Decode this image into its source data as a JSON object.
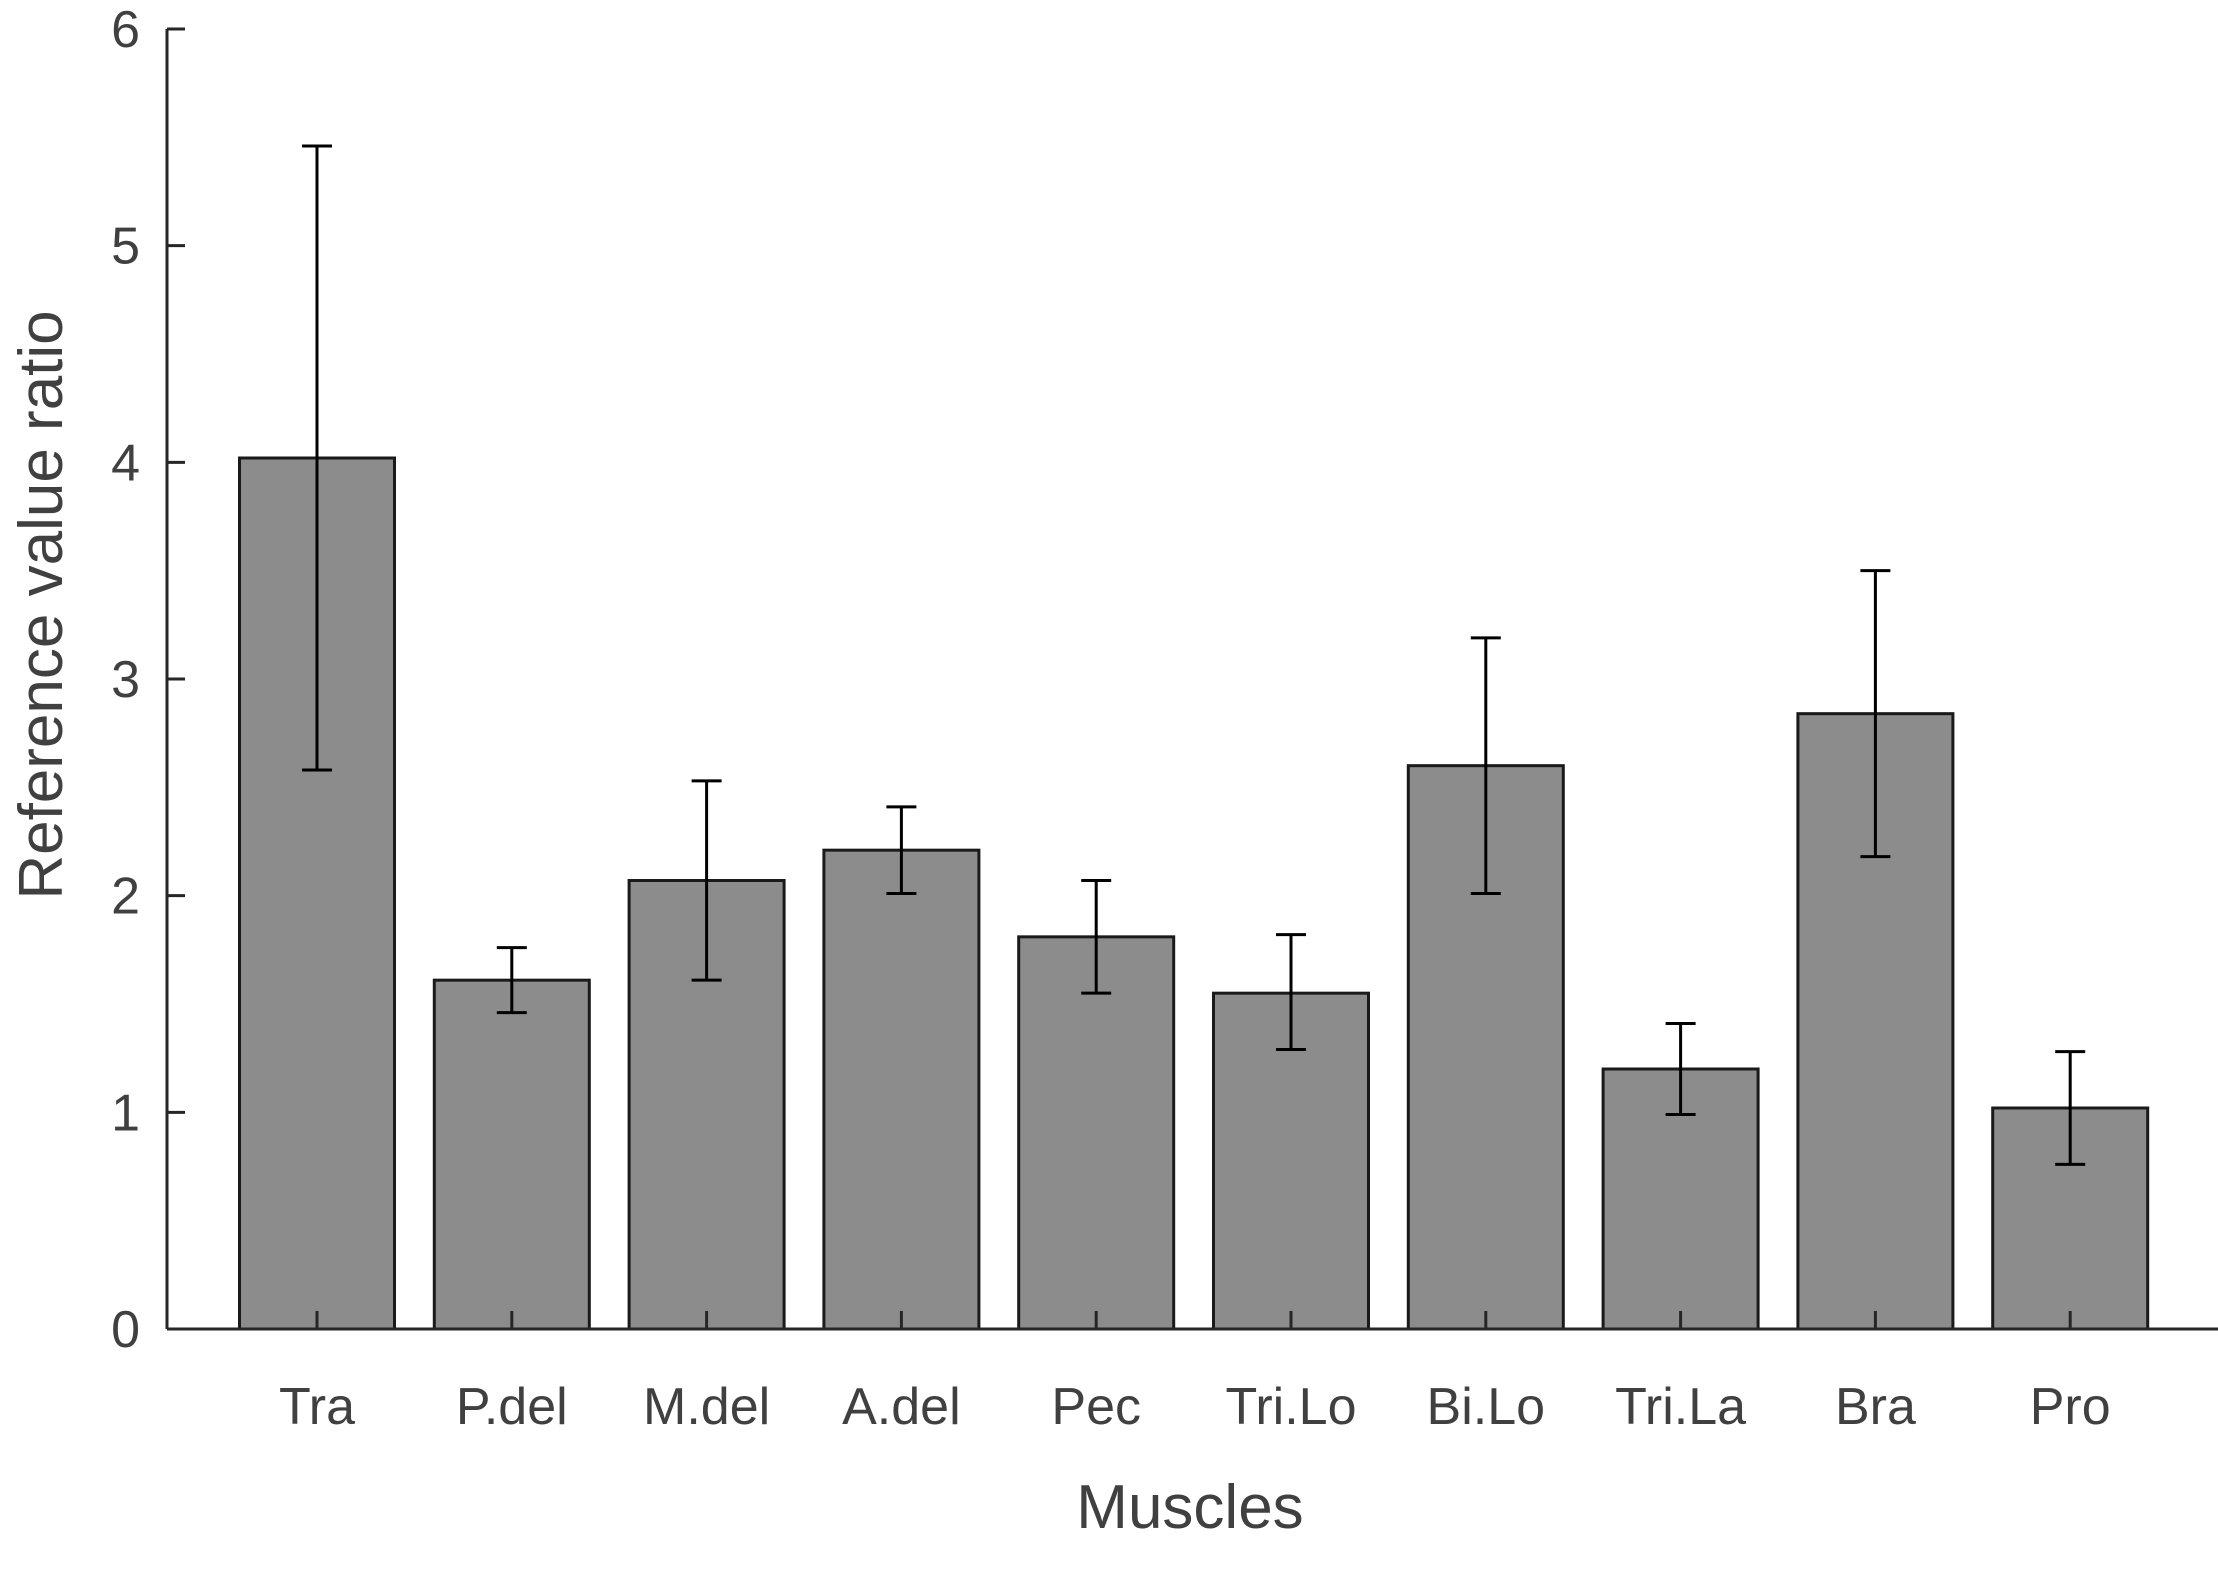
{
  "chart_data": {
    "type": "bar",
    "categories": [
      "Tra",
      "P.del",
      "M.del",
      "A.del",
      "Pec",
      "Tri.Lo",
      "Bi.Lo",
      "Tri.La",
      "Bra",
      "Pro"
    ],
    "values": [
      4.02,
      1.61,
      2.07,
      2.21,
      1.81,
      1.55,
      2.6,
      1.2,
      2.84,
      1.02
    ],
    "error_low": [
      2.58,
      1.46,
      1.61,
      2.01,
      1.55,
      1.29,
      2.01,
      0.99,
      2.18,
      0.76
    ],
    "error_high": [
      5.46,
      1.76,
      2.53,
      2.41,
      2.07,
      1.82,
      3.19,
      1.41,
      3.5,
      1.28
    ],
    "xlabel": "Muscles",
    "ylabel": "Reference value ratio",
    "ylim": [
      0,
      6
    ],
    "yticks": [
      "0",
      "1",
      "2",
      "3",
      "4",
      "5",
      "6"
    ],
    "grid": false,
    "colors": {
      "bar": "#8c8c8c",
      "bar_edge": "#1a1a1a",
      "error_bar": "#000000",
      "axis": "#262626",
      "text": "#404040"
    }
  }
}
